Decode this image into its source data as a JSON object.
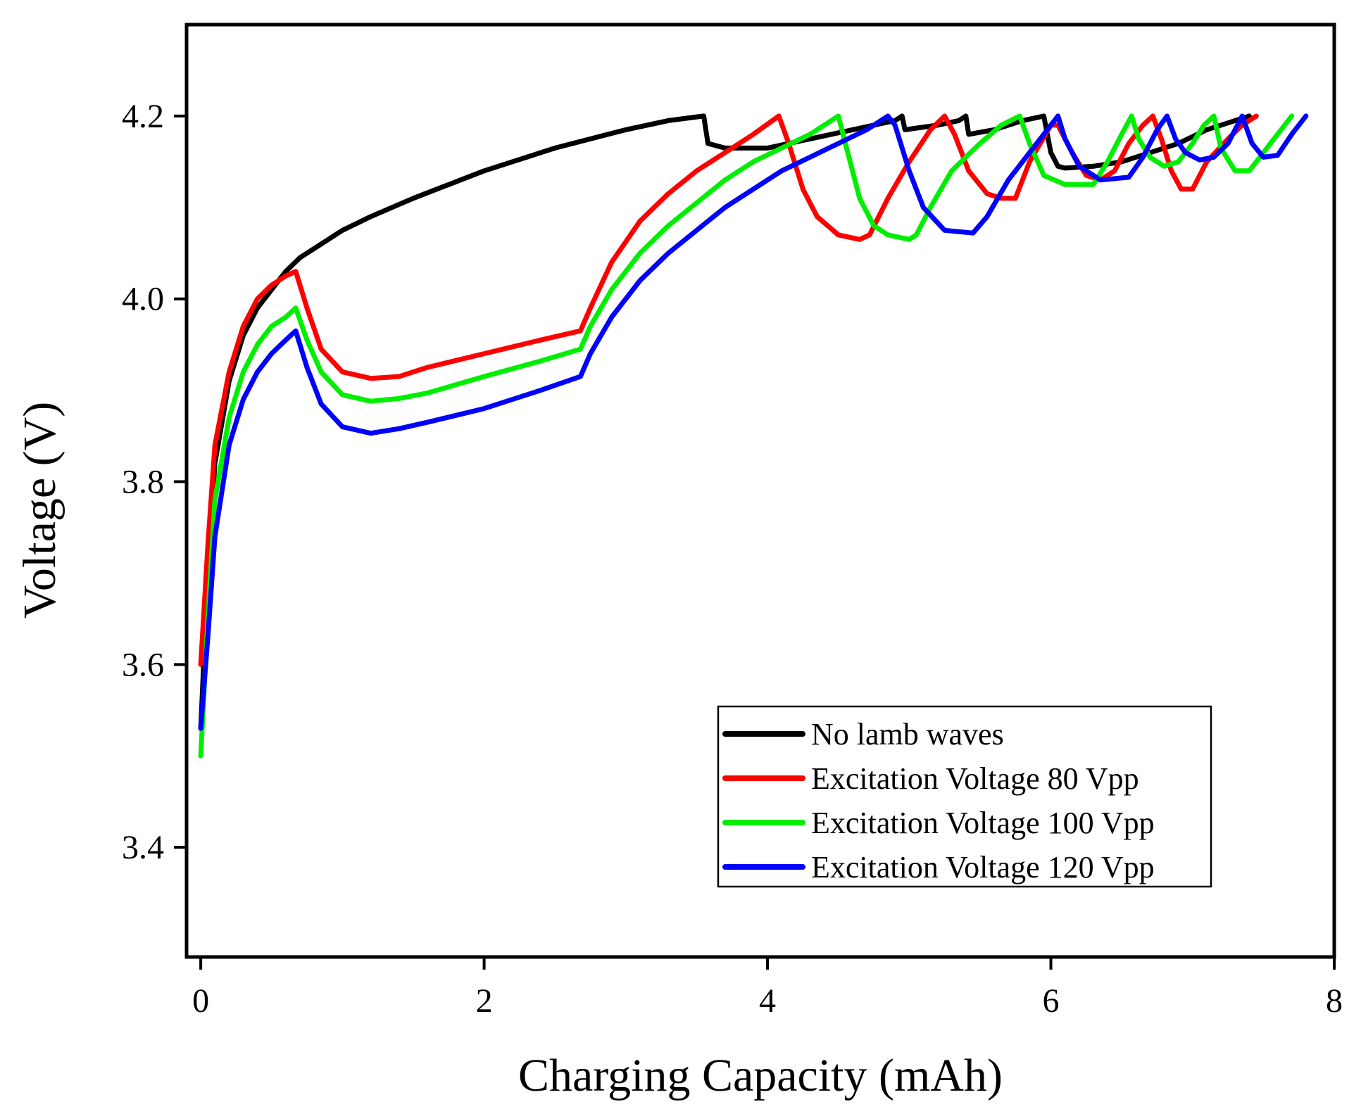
{
  "chart_data": {
    "type": "line",
    "title": "",
    "xlabel": "Charging Capacity (mAh)",
    "ylabel": "Voltage (V)",
    "xlim": [
      -0.1,
      8.0
    ],
    "ylim": [
      3.28,
      4.3
    ],
    "grid": false,
    "legend_position": "bottom-right",
    "x_ticks": [
      0,
      2,
      4,
      6,
      8
    ],
    "x_tick_labels": [
      "0",
      "2",
      "4",
      "6",
      "8"
    ],
    "y_ticks": [
      3.4,
      3.6,
      3.8,
      4.0,
      4.2
    ],
    "y_tick_labels": [
      "3.4",
      "3.6",
      "3.8",
      "4.0",
      "4.2"
    ],
    "series": [
      {
        "name": "No lamb waves",
        "color": "#000000",
        "points": [
          [
            0,
            3.53
          ],
          [
            0.05,
            3.7
          ],
          [
            0.1,
            3.82
          ],
          [
            0.2,
            3.91
          ],
          [
            0.3,
            3.96
          ],
          [
            0.4,
            3.99
          ],
          [
            0.5,
            4.01
          ],
          [
            0.6,
            4.03
          ],
          [
            0.7,
            4.045
          ],
          [
            0.8,
            4.055
          ],
          [
            1.0,
            4.075
          ],
          [
            1.2,
            4.09
          ],
          [
            1.5,
            4.11
          ],
          [
            2.0,
            4.14
          ],
          [
            2.5,
            4.165
          ],
          [
            3.0,
            4.185
          ],
          [
            3.3,
            4.195
          ],
          [
            3.55,
            4.2
          ],
          [
            3.58,
            4.17
          ],
          [
            3.7,
            4.165
          ],
          [
            4.0,
            4.165
          ],
          [
            4.3,
            4.175
          ],
          [
            4.6,
            4.185
          ],
          [
            4.9,
            4.195
          ],
          [
            4.95,
            4.2
          ],
          [
            4.97,
            4.185
          ],
          [
            5.2,
            4.19
          ],
          [
            5.35,
            4.195
          ],
          [
            5.4,
            4.2
          ],
          [
            5.42,
            4.18
          ],
          [
            5.6,
            4.185
          ],
          [
            5.8,
            4.195
          ],
          [
            5.95,
            4.2
          ],
          [
            6.0,
            4.16
          ],
          [
            6.05,
            4.145
          ],
          [
            6.1,
            4.143
          ],
          [
            6.3,
            4.145
          ],
          [
            6.5,
            4.15
          ],
          [
            6.7,
            4.16
          ],
          [
            6.9,
            4.17
          ],
          [
            7.1,
            4.185
          ],
          [
            7.3,
            4.195
          ],
          [
            7.4,
            4.2
          ]
        ]
      },
      {
        "name": "Excitation Voltage 80 Vpp",
        "color": "#ff0000",
        "points": [
          [
            0,
            3.6
          ],
          [
            0.05,
            3.73
          ],
          [
            0.1,
            3.84
          ],
          [
            0.2,
            3.92
          ],
          [
            0.3,
            3.97
          ],
          [
            0.4,
            4.0
          ],
          [
            0.5,
            4.015
          ],
          [
            0.6,
            4.025
          ],
          [
            0.67,
            4.03
          ],
          [
            0.75,
            3.99
          ],
          [
            0.85,
            3.945
          ],
          [
            1.0,
            3.92
          ],
          [
            1.2,
            3.913
          ],
          [
            1.4,
            3.915
          ],
          [
            1.6,
            3.925
          ],
          [
            2.0,
            3.94
          ],
          [
            2.4,
            3.955
          ],
          [
            2.68,
            3.965
          ],
          [
            2.75,
            3.99
          ],
          [
            2.9,
            4.04
          ],
          [
            3.1,
            4.085
          ],
          [
            3.3,
            4.115
          ],
          [
            3.5,
            4.14
          ],
          [
            3.7,
            4.16
          ],
          [
            3.9,
            4.18
          ],
          [
            4.08,
            4.2
          ],
          [
            4.15,
            4.17
          ],
          [
            4.25,
            4.12
          ],
          [
            4.35,
            4.09
          ],
          [
            4.5,
            4.07
          ],
          [
            4.65,
            4.065
          ],
          [
            4.72,
            4.07
          ],
          [
            4.85,
            4.11
          ],
          [
            5.0,
            4.15
          ],
          [
            5.15,
            4.185
          ],
          [
            5.25,
            4.2
          ],
          [
            5.32,
            4.18
          ],
          [
            5.42,
            4.14
          ],
          [
            5.55,
            4.115
          ],
          [
            5.65,
            4.11
          ],
          [
            5.75,
            4.11
          ],
          [
            5.85,
            4.15
          ],
          [
            6.0,
            4.19
          ],
          [
            6.05,
            4.19
          ],
          [
            6.15,
            4.16
          ],
          [
            6.25,
            4.135
          ],
          [
            6.35,
            4.13
          ],
          [
            6.45,
            4.14
          ],
          [
            6.55,
            4.17
          ],
          [
            6.65,
            4.19
          ],
          [
            6.72,
            4.2
          ],
          [
            6.78,
            4.175
          ],
          [
            6.85,
            4.14
          ],
          [
            6.92,
            4.12
          ],
          [
            7.0,
            4.12
          ],
          [
            7.1,
            4.15
          ],
          [
            7.25,
            4.175
          ],
          [
            7.35,
            4.19
          ],
          [
            7.45,
            4.2
          ]
        ]
      },
      {
        "name": "Excitation Voltage 100 Vpp",
        "color": "#00ee00",
        "points": [
          [
            0,
            3.5
          ],
          [
            0.05,
            3.65
          ],
          [
            0.1,
            3.78
          ],
          [
            0.2,
            3.87
          ],
          [
            0.3,
            3.92
          ],
          [
            0.4,
            3.95
          ],
          [
            0.5,
            3.97
          ],
          [
            0.6,
            3.98
          ],
          [
            0.67,
            3.99
          ],
          [
            0.75,
            3.955
          ],
          [
            0.85,
            3.92
          ],
          [
            1.0,
            3.895
          ],
          [
            1.2,
            3.888
          ],
          [
            1.4,
            3.891
          ],
          [
            1.6,
            3.897
          ],
          [
            2.0,
            3.915
          ],
          [
            2.4,
            3.932
          ],
          [
            2.68,
            3.945
          ],
          [
            2.75,
            3.97
          ],
          [
            2.9,
            4.01
          ],
          [
            3.1,
            4.05
          ],
          [
            3.3,
            4.08
          ],
          [
            3.5,
            4.105
          ],
          [
            3.7,
            4.13
          ],
          [
            3.9,
            4.15
          ],
          [
            4.1,
            4.165
          ],
          [
            4.3,
            4.18
          ],
          [
            4.45,
            4.195
          ],
          [
            4.5,
            4.2
          ],
          [
            4.55,
            4.17
          ],
          [
            4.65,
            4.11
          ],
          [
            4.75,
            4.08
          ],
          [
            4.85,
            4.07
          ],
          [
            5.0,
            4.065
          ],
          [
            5.05,
            4.07
          ],
          [
            5.15,
            4.1
          ],
          [
            5.3,
            4.14
          ],
          [
            5.5,
            4.17
          ],
          [
            5.65,
            4.19
          ],
          [
            5.78,
            4.2
          ],
          [
            5.85,
            4.17
          ],
          [
            5.95,
            4.135
          ],
          [
            6.1,
            4.125
          ],
          [
            6.3,
            4.125
          ],
          [
            6.4,
            4.15
          ],
          [
            6.5,
            4.18
          ],
          [
            6.57,
            4.2
          ],
          [
            6.62,
            4.175
          ],
          [
            6.7,
            4.155
          ],
          [
            6.8,
            4.145
          ],
          [
            6.9,
            4.15
          ],
          [
            7.0,
            4.17
          ],
          [
            7.08,
            4.19
          ],
          [
            7.15,
            4.2
          ],
          [
            7.2,
            4.165
          ],
          [
            7.3,
            4.14
          ],
          [
            7.4,
            4.14
          ],
          [
            7.5,
            4.16
          ],
          [
            7.6,
            4.18
          ],
          [
            7.7,
            4.2
          ]
        ]
      },
      {
        "name": "Excitation Voltage 120 Vpp",
        "color": "#0000ff",
        "points": [
          [
            0,
            3.53
          ],
          [
            0.05,
            3.63
          ],
          [
            0.1,
            3.74
          ],
          [
            0.2,
            3.84
          ],
          [
            0.3,
            3.89
          ],
          [
            0.4,
            3.92
          ],
          [
            0.5,
            3.94
          ],
          [
            0.6,
            3.955
          ],
          [
            0.67,
            3.965
          ],
          [
            0.75,
            3.925
          ],
          [
            0.85,
            3.885
          ],
          [
            1.0,
            3.86
          ],
          [
            1.2,
            3.853
          ],
          [
            1.4,
            3.858
          ],
          [
            1.6,
            3.865
          ],
          [
            2.0,
            3.88
          ],
          [
            2.4,
            3.9
          ],
          [
            2.68,
            3.915
          ],
          [
            2.75,
            3.94
          ],
          [
            2.9,
            3.98
          ],
          [
            3.1,
            4.02
          ],
          [
            3.3,
            4.05
          ],
          [
            3.5,
            4.075
          ],
          [
            3.7,
            4.1
          ],
          [
            3.9,
            4.12
          ],
          [
            4.1,
            4.14
          ],
          [
            4.3,
            4.155
          ],
          [
            4.5,
            4.17
          ],
          [
            4.7,
            4.185
          ],
          [
            4.85,
            4.2
          ],
          [
            4.9,
            4.19
          ],
          [
            5.0,
            4.14
          ],
          [
            5.1,
            4.1
          ],
          [
            5.25,
            4.075
          ],
          [
            5.45,
            4.072
          ],
          [
            5.55,
            4.09
          ],
          [
            5.7,
            4.13
          ],
          [
            5.85,
            4.16
          ],
          [
            5.95,
            4.18
          ],
          [
            6.05,
            4.2
          ],
          [
            6.1,
            4.175
          ],
          [
            6.2,
            4.145
          ],
          [
            6.35,
            4.13
          ],
          [
            6.55,
            4.133
          ],
          [
            6.65,
            4.155
          ],
          [
            6.75,
            4.185
          ],
          [
            6.82,
            4.2
          ],
          [
            6.88,
            4.175
          ],
          [
            6.95,
            4.16
          ],
          [
            7.05,
            4.152
          ],
          [
            7.15,
            4.155
          ],
          [
            7.25,
            4.17
          ],
          [
            7.35,
            4.2
          ],
          [
            7.42,
            4.17
          ],
          [
            7.5,
            4.155
          ],
          [
            7.6,
            4.157
          ],
          [
            7.7,
            4.18
          ],
          [
            7.8,
            4.2
          ]
        ]
      }
    ]
  }
}
